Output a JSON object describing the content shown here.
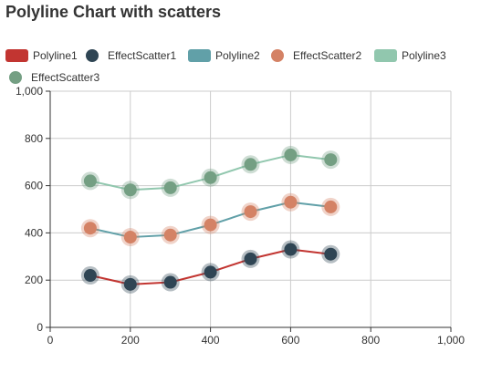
{
  "chart_data": {
    "type": "line",
    "title": "Polyline Chart with scatters",
    "x": [
      100,
      200,
      300,
      400,
      500,
      600,
      700
    ],
    "xlim": [
      0,
      1000
    ],
    "ylim": [
      0,
      1000
    ],
    "xticks": [
      0,
      200,
      400,
      600,
      800,
      1000
    ],
    "yticks": [
      0,
      200,
      400,
      600,
      800,
      1000
    ],
    "xtick_labels": [
      "0",
      "200",
      "400",
      "600",
      "800",
      "1,000"
    ],
    "ytick_labels": [
      "0",
      "200",
      "400",
      "600",
      "800",
      "1,000"
    ],
    "grid": true,
    "legend_position": "top-left",
    "legend": [
      {
        "name": "Polyline1",
        "kind": "line",
        "color": "#c23531"
      },
      {
        "name": "EffectScatter1",
        "kind": "scatter",
        "color": "#2f4554"
      },
      {
        "name": "Polyline2",
        "kind": "line",
        "color": "#61a0a8"
      },
      {
        "name": "EffectScatter2",
        "kind": "scatter",
        "color": "#d48265"
      },
      {
        "name": "Polyline3",
        "kind": "line",
        "color": "#91c7ae"
      },
      {
        "name": "EffectScatter3",
        "kind": "scatter",
        "color": "#749f83"
      }
    ],
    "series": [
      {
        "name": "Polyline1",
        "type": "line",
        "color": "#c23531",
        "values": [
          220,
          182,
          191,
          234,
          290,
          330,
          310
        ]
      },
      {
        "name": "EffectScatter1",
        "type": "effectScatter",
        "color": "#2f4554",
        "values": [
          220,
          182,
          191,
          234,
          290,
          330,
          310
        ]
      },
      {
        "name": "Polyline2",
        "type": "line",
        "color": "#61a0a8",
        "values": [
          420,
          382,
          391,
          434,
          490,
          530,
          510
        ]
      },
      {
        "name": "EffectScatter2",
        "type": "effectScatter",
        "color": "#d48265",
        "values": [
          420,
          382,
          391,
          434,
          490,
          530,
          510
        ]
      },
      {
        "name": "Polyline3",
        "type": "line",
        "color": "#91c7ae",
        "values": [
          620,
          582,
          591,
          634,
          690,
          730,
          710
        ]
      },
      {
        "name": "EffectScatter3",
        "type": "effectScatter",
        "color": "#749f83",
        "values": [
          620,
          582,
          591,
          634,
          690,
          730,
          710
        ]
      }
    ]
  }
}
